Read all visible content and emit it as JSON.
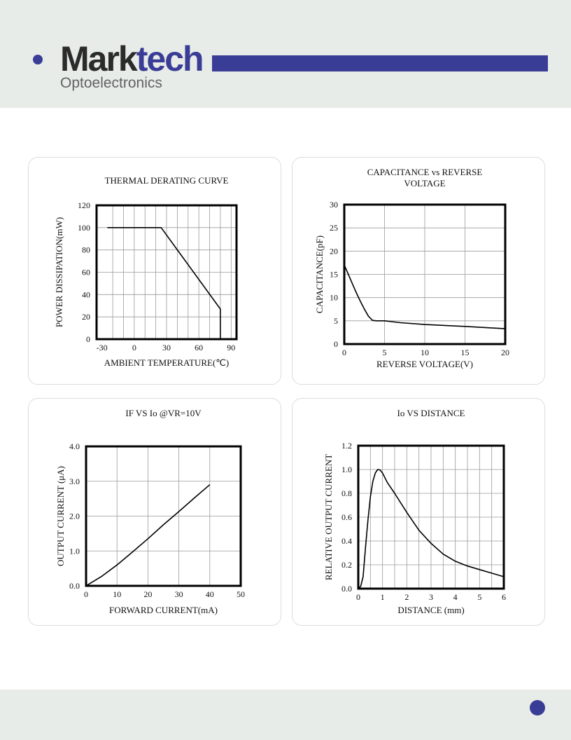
{
  "brand": {
    "name_part1": "Mark",
    "name_part2": "tech",
    "tagline": "Optoelectronics"
  },
  "colors": {
    "brand_blue": "#3a3d96",
    "brand_dark": "#2b2b2b",
    "band": "#e8ece8"
  },
  "icons": {
    "logo": "marktech-logo-icon",
    "page_marker": "page-dot-icon"
  },
  "chart_data": [
    {
      "type": "line",
      "title": "THERMAL DERATING CURVE",
      "xlabel": "AMBIENT TEMPERATURE(℃)",
      "ylabel": "POWER DISSIPATION(mW)",
      "xlim": [
        -35,
        95
      ],
      "ylim": [
        0,
        120
      ],
      "xticks": [
        "-30",
        "0",
        "30",
        "60",
        "90"
      ],
      "xtick_values": [
        -30,
        0,
        30,
        60,
        90
      ],
      "yticks": [
        "0",
        "20",
        "40",
        "60",
        "80",
        "100",
        "120"
      ],
      "ytick_values": [
        0,
        20,
        40,
        60,
        80,
        100,
        120
      ],
      "grid": true,
      "series": [
        {
          "x": [
            -25,
            25,
            80,
            80
          ],
          "y": [
            100,
            100,
            27,
            0
          ]
        }
      ]
    },
    {
      "type": "line",
      "title_lines": [
        "CAPACITANCE vs REVERSE",
        "VOLTAGE"
      ],
      "xlabel": "REVERSE VOLTAGE(V)",
      "ylabel": "CAPACITANCE(pF)",
      "xlim": [
        0,
        20
      ],
      "ylim": [
        0,
        30
      ],
      "xticks": [
        "0",
        "5",
        "10",
        "15",
        "20"
      ],
      "xtick_values": [
        0,
        5,
        10,
        15,
        20
      ],
      "yticks": [
        "0",
        "5",
        "10",
        "15",
        "20",
        "25",
        "30"
      ],
      "ytick_values": [
        0,
        5,
        10,
        15,
        20,
        25,
        30
      ],
      "grid": true,
      "series": [
        {
          "x": [
            0,
            0.5,
            1,
            1.5,
            2,
            2.5,
            3,
            3.5,
            4,
            5,
            7,
            10,
            15,
            20
          ],
          "y": [
            17,
            15,
            13,
            11,
            9.2,
            7.5,
            6,
            5.1,
            5,
            5,
            4.6,
            4.2,
            3.8,
            3.3
          ]
        }
      ]
    },
    {
      "type": "line",
      "title": "IF  VS  Io   @VR=10V",
      "xlabel": "FORWARD CURRENT(mA)",
      "ylabel": "OUTPUT CURRENT (μA)",
      "xlim": [
        0,
        50
      ],
      "ylim": [
        0,
        4
      ],
      "xticks": [
        "0",
        "10",
        "20",
        "30",
        "40",
        "50"
      ],
      "xtick_values": [
        0,
        10,
        20,
        30,
        40,
        50
      ],
      "yticks": [
        "0.0",
        "1.0",
        "2.0",
        "3.0",
        "4.0"
      ],
      "ytick_values": [
        0,
        1,
        2,
        3,
        4
      ],
      "grid": true,
      "series": [
        {
          "x": [
            0,
            5,
            10,
            15,
            20,
            25,
            30,
            35,
            40
          ],
          "y": [
            0,
            0.27,
            0.6,
            0.97,
            1.35,
            1.75,
            2.13,
            2.52,
            2.9
          ]
        }
      ]
    },
    {
      "type": "line",
      "title": "Io VS DISTANCE",
      "xlabel": "DISTANCE  (mm)",
      "ylabel": "RELATIVE  OUTPUT CURRENT",
      "xlim": [
        0,
        6
      ],
      "ylim": [
        0,
        1.2
      ],
      "xticks": [
        "0",
        "1",
        "2",
        "3",
        "4",
        "5",
        "6"
      ],
      "xtick_values": [
        0,
        1,
        2,
        3,
        4,
        5,
        6
      ],
      "yticks": [
        "0.0",
        "0.2",
        "0.4",
        "0.6",
        "0.8",
        "1.0",
        "1.2"
      ],
      "ytick_values": [
        0,
        0.2,
        0.4,
        0.6,
        0.8,
        1.0,
        1.2
      ],
      "grid": true,
      "series": [
        {
          "x": [
            0,
            0.1,
            0.2,
            0.3,
            0.4,
            0.5,
            0.6,
            0.7,
            0.8,
            0.9,
            1.0,
            1.2,
            1.5,
            2.0,
            2.5,
            3.0,
            3.5,
            4.0,
            4.5,
            5.0,
            5.5,
            6.0
          ],
          "y": [
            0,
            0.02,
            0.1,
            0.35,
            0.58,
            0.77,
            0.9,
            0.97,
            1.0,
            0.995,
            0.97,
            0.89,
            0.8,
            0.64,
            0.49,
            0.38,
            0.29,
            0.23,
            0.19,
            0.16,
            0.13,
            0.1
          ]
        }
      ]
    }
  ]
}
